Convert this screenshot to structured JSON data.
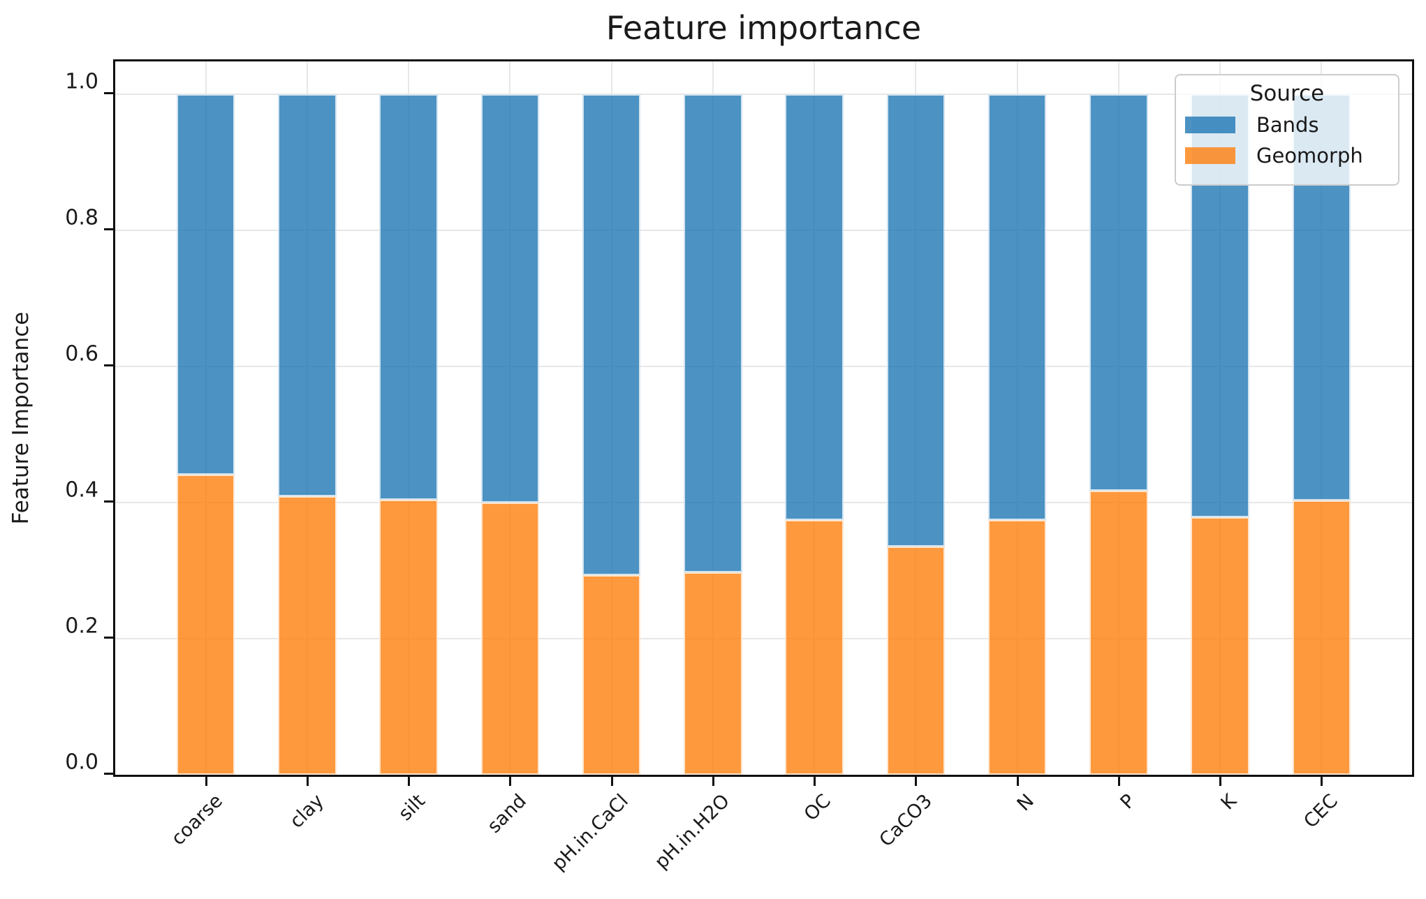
{
  "chart_data": {
    "type": "bar",
    "stacked": true,
    "title": "Feature importance",
    "xlabel": "",
    "ylabel": "Feature Importance",
    "categories": [
      "coarse",
      "clay",
      "silt",
      "sand",
      "pH.in.CaCl",
      "pH.in.H2O",
      "OC",
      "CaCO3",
      "N",
      "P",
      "K",
      "CEC"
    ],
    "series": [
      {
        "name": "Bands",
        "color": "#1f77b4",
        "alpha": 0.8,
        "values": [
          0.559,
          0.591,
          0.596,
          0.6,
          0.707,
          0.703,
          0.626,
          0.665,
          0.626,
          0.583,
          0.622,
          0.597
        ]
      },
      {
        "name": "Geomorph",
        "color": "#ff7f0e",
        "alpha": 0.8,
        "values": [
          0.441,
          0.409,
          0.404,
          0.4,
          0.293,
          0.297,
          0.374,
          0.335,
          0.374,
          0.417,
          0.378,
          0.403
        ]
      }
    ],
    "bar_totals": [
      1.0,
      1.0,
      1.0,
      1.0,
      1.0,
      1.0,
      1.0,
      1.0,
      1.0,
      1.0,
      1.0,
      1.0
    ],
    "yticks": [
      0.0,
      0.2,
      0.4,
      0.6,
      0.8,
      1.0
    ],
    "ylim": [
      0,
      1.048
    ],
    "grid": true,
    "legend": {
      "title": "Source",
      "position": "upper right",
      "entries": [
        "Bands",
        "Geomorph"
      ]
    }
  }
}
